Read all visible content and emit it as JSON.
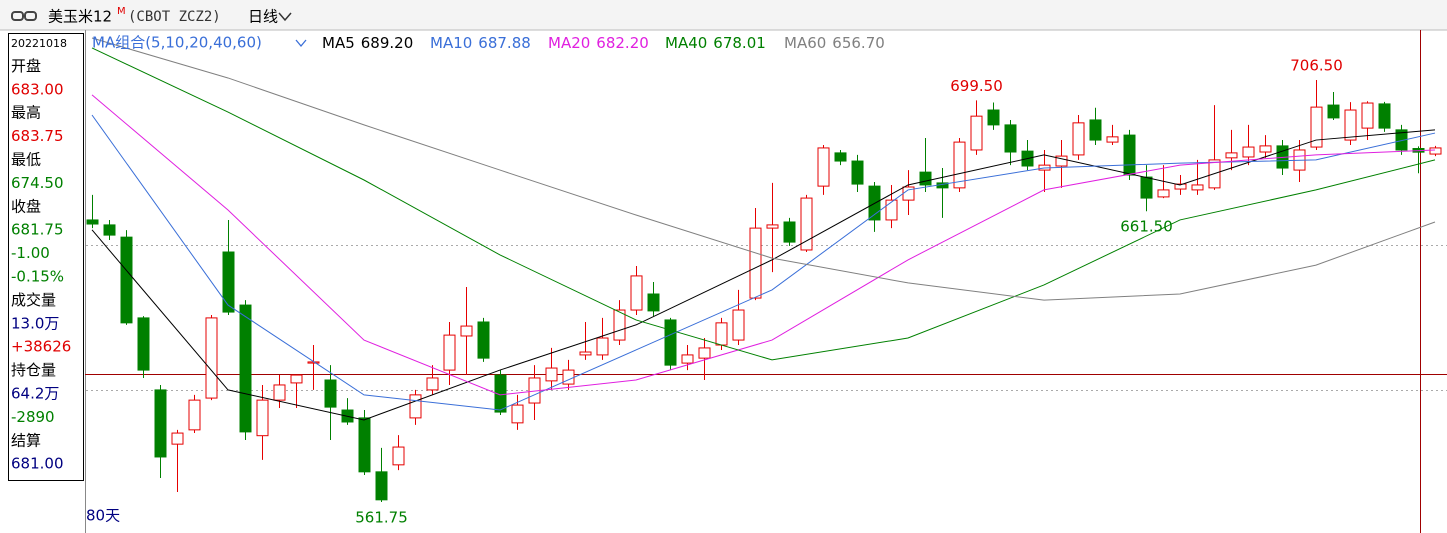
{
  "header": {
    "title": "美玉米12",
    "superscript": "M",
    "code": "(CBOT ZCZ2)",
    "period": "日线"
  },
  "info_panel": [
    {
      "text": "20221018",
      "color": "#000000"
    },
    {
      "text": "开盘",
      "color": "#000000"
    },
    {
      "text": "683.00",
      "color": "#e00000"
    },
    {
      "text": "最高",
      "color": "#000000"
    },
    {
      "text": "683.75",
      "color": "#e00000"
    },
    {
      "text": "最低",
      "color": "#000000"
    },
    {
      "text": "674.50",
      "color": "#008000"
    },
    {
      "text": "收盘",
      "color": "#000000"
    },
    {
      "text": "681.75",
      "color": "#008000"
    },
    {
      "text": "-1.00",
      "color": "#008000"
    },
    {
      "text": "-0.15%",
      "color": "#008000"
    },
    {
      "text": "成交量",
      "color": "#000000"
    },
    {
      "text": "13.0万",
      "color": "#000080"
    },
    {
      "text": "+38626",
      "color": "#e00000"
    },
    {
      "text": "持仓量",
      "color": "#000000"
    },
    {
      "text": "64.2万",
      "color": "#000080"
    },
    {
      "text": "-2890",
      "color": "#008000"
    },
    {
      "text": "结算",
      "color": "#000000"
    },
    {
      "text": "681.00",
      "color": "#000080"
    }
  ],
  "chart_data": {
    "type": "candlestick",
    "group_label": "MA组合(5,10,20,40,60)",
    "footer": "80天",
    "up_color": "#e60000",
    "down_color": "#008000",
    "ylim": [
      552.15,
      723.65
    ],
    "grid_lines": [
      600,
      650
    ],
    "open": [
      658.5,
      656.8,
      652.6,
      624.9,
      600.2,
      581.6,
      586.5,
      597.4,
      647.5,
      629.3,
      584.5,
      596.7,
      602.6,
      609.4,
      603.6,
      593.3,
      590.6,
      572.1,
      574.5,
      590.6,
      600.2,
      607.0,
      618.7,
      623.5,
      605.3,
      588.9,
      595.7,
      603.3,
      602.2,
      612.2,
      612.2,
      617.3,
      627.6,
      633.1,
      624.2,
      609.4,
      611.1,
      615.6,
      617.3,
      631.7,
      655.7,
      657.8,
      648.2,
      670.1,
      681.5,
      678.7,
      670.1,
      658.5,
      665.3,
      674.9,
      671.2,
      669.5,
      682.5,
      696.2,
      691.1,
      682.1,
      675.6,
      677.0,
      680.8,
      692.8,
      685.2,
      687.6,
      673.2,
      666.4,
      669.1,
      668.8,
      669.5,
      679.8,
      680.1,
      681.8,
      683.9,
      675.6,
      683.5,
      697.9,
      685.9,
      690.0,
      698.3,
      689.4,
      683,
      681.1
    ],
    "high": [
      667.1,
      658.5,
      655.0,
      625.5,
      601.9,
      586.5,
      598.5,
      625.9,
      658.5,
      631.0,
      601.9,
      605.3,
      605.3,
      615.6,
      608.7,
      597.4,
      593.3,
      580.3,
      584.7,
      600.2,
      608.7,
      623.5,
      635.5,
      624.9,
      607.0,
      598.5,
      608.7,
      614.6,
      610.5,
      623.5,
      624.9,
      631.0,
      642.7,
      637.2,
      624.9,
      615.6,
      618.0,
      624.9,
      634.5,
      662.6,
      671.2,
      659.2,
      667.1,
      684.2,
      682.5,
      680.8,
      671.5,
      670.5,
      675.6,
      686.6,
      676.3,
      686.6,
      699.5,
      698.8,
      692.8,
      685.9,
      682.5,
      685.9,
      694.5,
      697.0,
      691.1,
      689.4,
      677.3,
      677.3,
      673.9,
      679.1,
      697.9,
      689.4,
      691.1,
      687.6,
      685.9,
      685.9,
      706.5,
      702.4,
      698.9,
      699.2,
      699.0,
      691.1,
      683.75,
      683.9
    ],
    "low": [
      655.7,
      651.6,
      622.5,
      604.3,
      570.0,
      565.2,
      585.4,
      596.7,
      625.9,
      583.0,
      576.2,
      594.0,
      594.0,
      600.2,
      583.0,
      588.2,
      571.0,
      561.75,
      572.7,
      588.2,
      598.5,
      601.9,
      605.3,
      609.8,
      591.6,
      586.5,
      589.9,
      600.2,
      600.2,
      610.5,
      610.5,
      615.6,
      625.9,
      625.5,
      607.0,
      607.0,
      603.6,
      613.9,
      615.6,
      631.0,
      640.6,
      649.6,
      647.5,
      667.1,
      677.3,
      668.1,
      654.4,
      655.7,
      660.2,
      668.1,
      659.2,
      668.1,
      680.8,
      689.4,
      677.3,
      675.6,
      668.1,
      669.5,
      679.1,
      684.2,
      684.2,
      672.2,
      661.5,
      666.0,
      667.1,
      667.1,
      668.8,
      675.6,
      677.3,
      679.8,
      673.9,
      671.5,
      682.5,
      692.8,
      684.2,
      685.9,
      688.7,
      680.8,
      674.5,
      680.4
    ],
    "close": [
      657.1,
      653.3,
      623.2,
      607.0,
      577.2,
      585.4,
      596.7,
      624.9,
      626.9,
      585.8,
      596.7,
      601.9,
      605.3,
      609.8,
      594.3,
      589.2,
      572.1,
      562.5,
      580.6,
      598.5,
      604.3,
      619.0,
      622.1,
      611.1,
      592.6,
      595.0,
      604.3,
      607.7,
      607.0,
      613.2,
      618.0,
      627.6,
      639.3,
      627.3,
      608.7,
      612.2,
      614.6,
      623.2,
      627.6,
      655.7,
      656.8,
      650.9,
      666.0,
      683.2,
      678.7,
      670.8,
      658.5,
      665.3,
      669.8,
      670.5,
      669.5,
      685.2,
      694.1,
      691.1,
      681.8,
      677.0,
      677.3,
      680.4,
      691.8,
      685.9,
      687.0,
      673.9,
      666.0,
      668.8,
      670.8,
      670.5,
      679.1,
      681.5,
      683.5,
      683.9,
      676.3,
      682.5,
      697.2,
      693.5,
      696.2,
      698.6,
      690.0,
      682.5,
      681.75,
      683.2
    ],
    "moving_averages": [
      {
        "name": "MA5",
        "last": "689.20",
        "color": "#000000",
        "x": [
          0,
          8,
          16,
          24,
          32,
          40,
          48,
          56,
          64,
          72,
          79
        ],
        "values": [
          655.1,
          600.2,
          589.9,
          607.0,
          622.5,
          644.8,
          670.5,
          680.8,
          670.5,
          685.9,
          689.4
        ]
      },
      {
        "name": "MA10",
        "last": "687.88",
        "color": "#3a6fd8",
        "x": [
          0,
          8,
          16,
          24,
          32,
          40,
          48,
          56,
          64,
          72,
          79
        ],
        "values": [
          694.5,
          629.3,
          598.5,
          593.3,
          613.9,
          634.5,
          668.8,
          676.3,
          678.0,
          679.1,
          688.3
        ]
      },
      {
        "name": "MA20",
        "last": "682.20",
        "color": "#e020e0",
        "x": [
          0,
          8,
          16,
          24,
          32,
          40,
          48,
          56,
          64,
          72,
          79
        ],
        "values": [
          701.4,
          661.9,
          617.3,
          598.5,
          603.6,
          617.3,
          644.8,
          668.8,
          677.3,
          680.8,
          682.5
        ]
      },
      {
        "name": "MA40",
        "last": "678.01",
        "color": "#008000",
        "x": [
          0,
          8,
          16,
          24,
          32,
          40,
          48,
          56,
          64,
          72,
          79
        ],
        "values": [
          717.5,
          695.5,
          672.2,
          646.5,
          624.2,
          610.5,
          618.0,
          636.2,
          658.5,
          668.8,
          679.1
        ]
      },
      {
        "name": "MA60",
        "last": "656.70",
        "color": "#808080",
        "x": [
          0,
          8,
          16,
          24,
          32,
          40,
          48,
          56,
          64,
          72,
          79
        ],
        "values": [
          720.9,
          707.2,
          691.1,
          675.6,
          660.2,
          645.4,
          636.9,
          631.0,
          633.1,
          643.0,
          657.8
        ]
      }
    ],
    "annotations": [
      {
        "value": 561.75,
        "label": "561.75",
        "color": "#008000"
      },
      {
        "value": 699.5,
        "label": "699.50",
        "color": "#e00000"
      },
      {
        "value": 706.5,
        "label": "706.50",
        "color": "#e00000"
      },
      {
        "value": 661.5,
        "label": "661.50",
        "color": "#008000"
      }
    ]
  }
}
